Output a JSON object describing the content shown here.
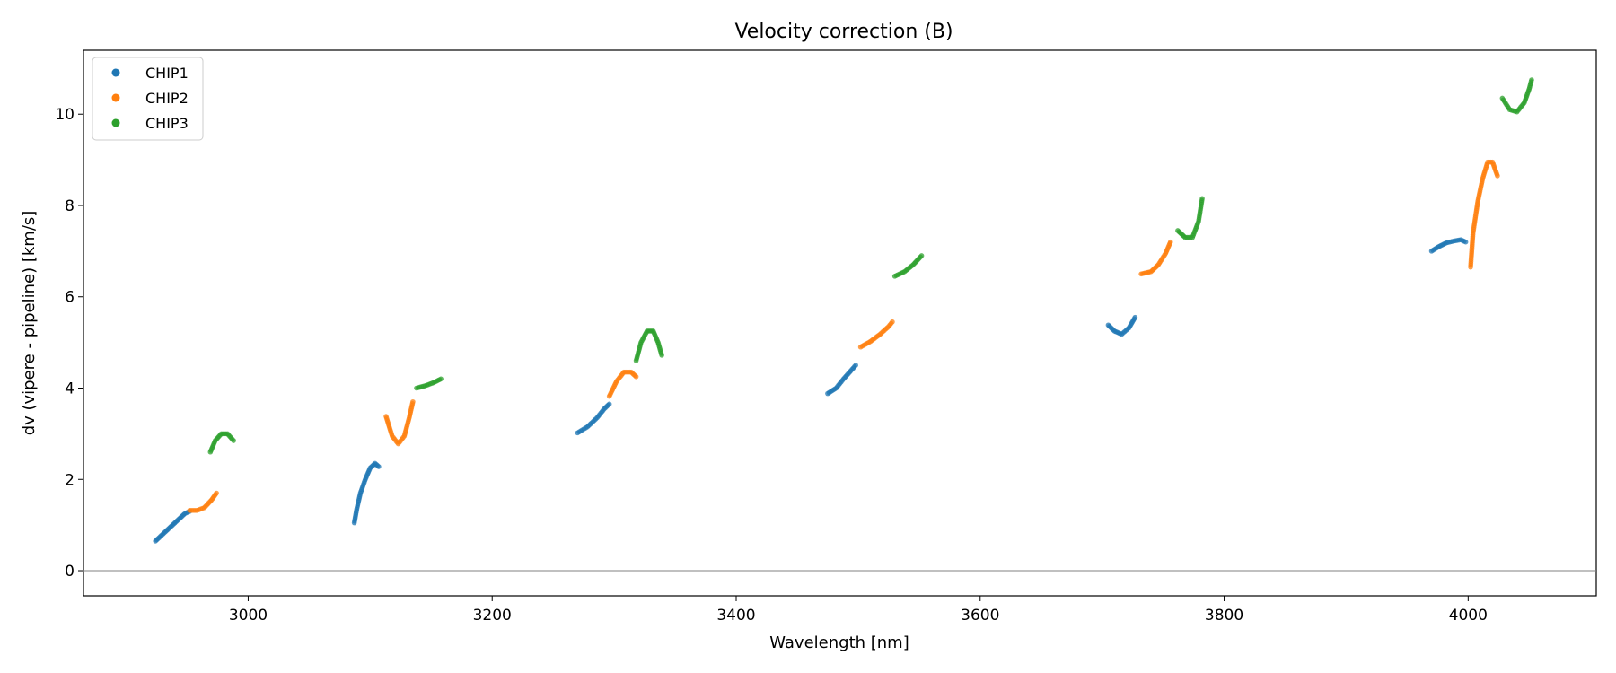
{
  "chart_data": {
    "type": "scatter",
    "title": "Velocity correction (B)",
    "xlabel": "Wavelength [nm]",
    "ylabel": "dv (vipere - pipeline) [km/s]",
    "xlim": [
      2865,
      4105
    ],
    "ylim": [
      -0.55,
      11.4
    ],
    "xticks": [
      3000,
      3200,
      3400,
      3600,
      3800,
      4000
    ],
    "yticks": [
      0,
      2,
      4,
      6,
      8,
      10
    ],
    "hline": 0,
    "legend_position": "top-left",
    "series": [
      {
        "name": "CHIP1",
        "color": "#1f77b4",
        "segments": [
          [
            [
              2924,
              0.65
            ],
            [
              2930,
              0.8
            ],
            [
              2936,
              0.95
            ],
            [
              2942,
              1.1
            ],
            [
              2948,
              1.25
            ],
            [
              2952,
              1.3
            ]
          ],
          [
            [
              3087,
              1.05
            ],
            [
              3089,
              1.35
            ],
            [
              3092,
              1.7
            ],
            [
              3096,
              2.0
            ],
            [
              3100,
              2.25
            ],
            [
              3104,
              2.35
            ],
            [
              3107,
              2.28
            ]
          ],
          [
            [
              3270,
              3.02
            ],
            [
              3278,
              3.15
            ],
            [
              3286,
              3.35
            ],
            [
              3292,
              3.55
            ],
            [
              3296,
              3.65
            ]
          ],
          [
            [
              3475,
              3.88
            ],
            [
              3482,
              4.0
            ],
            [
              3488,
              4.2
            ],
            [
              3494,
              4.38
            ],
            [
              3498,
              4.5
            ]
          ],
          [
            [
              3705,
              5.38
            ],
            [
              3710,
              5.25
            ],
            [
              3716,
              5.18
            ],
            [
              3722,
              5.32
            ],
            [
              3727,
              5.55
            ]
          ],
          [
            [
              3970,
              7.0
            ],
            [
              3976,
              7.1
            ],
            [
              3982,
              7.18
            ],
            [
              3988,
              7.22
            ],
            [
              3994,
              7.25
            ],
            [
              3998,
              7.2
            ]
          ]
        ]
      },
      {
        "name": "CHIP2",
        "color": "#ff7f0e",
        "segments": [
          [
            [
              2952,
              1.32
            ],
            [
              2958,
              1.32
            ],
            [
              2964,
              1.38
            ],
            [
              2970,
              1.55
            ],
            [
              2974,
              1.7
            ]
          ],
          [
            [
              3113,
              3.38
            ],
            [
              3118,
              2.95
            ],
            [
              3123,
              2.78
            ],
            [
              3128,
              2.95
            ],
            [
              3132,
              3.35
            ],
            [
              3135,
              3.7
            ]
          ],
          [
            [
              3296,
              3.82
            ],
            [
              3302,
              4.15
            ],
            [
              3308,
              4.35
            ],
            [
              3314,
              4.35
            ],
            [
              3318,
              4.25
            ]
          ],
          [
            [
              3502,
              4.9
            ],
            [
              3510,
              5.02
            ],
            [
              3518,
              5.18
            ],
            [
              3525,
              5.35
            ],
            [
              3528,
              5.45
            ]
          ],
          [
            [
              3732,
              6.5
            ],
            [
              3740,
              6.55
            ],
            [
              3746,
              6.7
            ],
            [
              3752,
              6.95
            ],
            [
              3756,
              7.2
            ]
          ],
          [
            [
              4002,
              6.65
            ],
            [
              4004,
              7.4
            ],
            [
              4008,
              8.1
            ],
            [
              4012,
              8.6
            ],
            [
              4016,
              8.95
            ],
            [
              4020,
              8.95
            ],
            [
              4024,
              8.65
            ]
          ]
        ]
      },
      {
        "name": "CHIP3",
        "color": "#2ca02c",
        "segments": [
          [
            [
              2969,
              2.6
            ],
            [
              2973,
              2.85
            ],
            [
              2978,
              3.0
            ],
            [
              2983,
              3.0
            ],
            [
              2988,
              2.85
            ]
          ],
          [
            [
              3138,
              4.0
            ],
            [
              3145,
              4.05
            ],
            [
              3152,
              4.12
            ],
            [
              3158,
              4.2
            ]
          ],
          [
            [
              3318,
              4.6
            ],
            [
              3322,
              5.0
            ],
            [
              3327,
              5.25
            ],
            [
              3332,
              5.25
            ],
            [
              3336,
              5.0
            ],
            [
              3339,
              4.72
            ]
          ],
          [
            [
              3530,
              6.45
            ],
            [
              3538,
              6.55
            ],
            [
              3545,
              6.7
            ],
            [
              3552,
              6.9
            ]
          ],
          [
            [
              3762,
              7.45
            ],
            [
              3768,
              7.3
            ],
            [
              3774,
              7.3
            ],
            [
              3779,
              7.65
            ],
            [
              3782,
              8.15
            ]
          ],
          [
            [
              4028,
              10.35
            ],
            [
              4034,
              10.1
            ],
            [
              4040,
              10.05
            ],
            [
              4046,
              10.25
            ],
            [
              4050,
              10.55
            ],
            [
              4052,
              10.75
            ]
          ]
        ]
      }
    ]
  }
}
